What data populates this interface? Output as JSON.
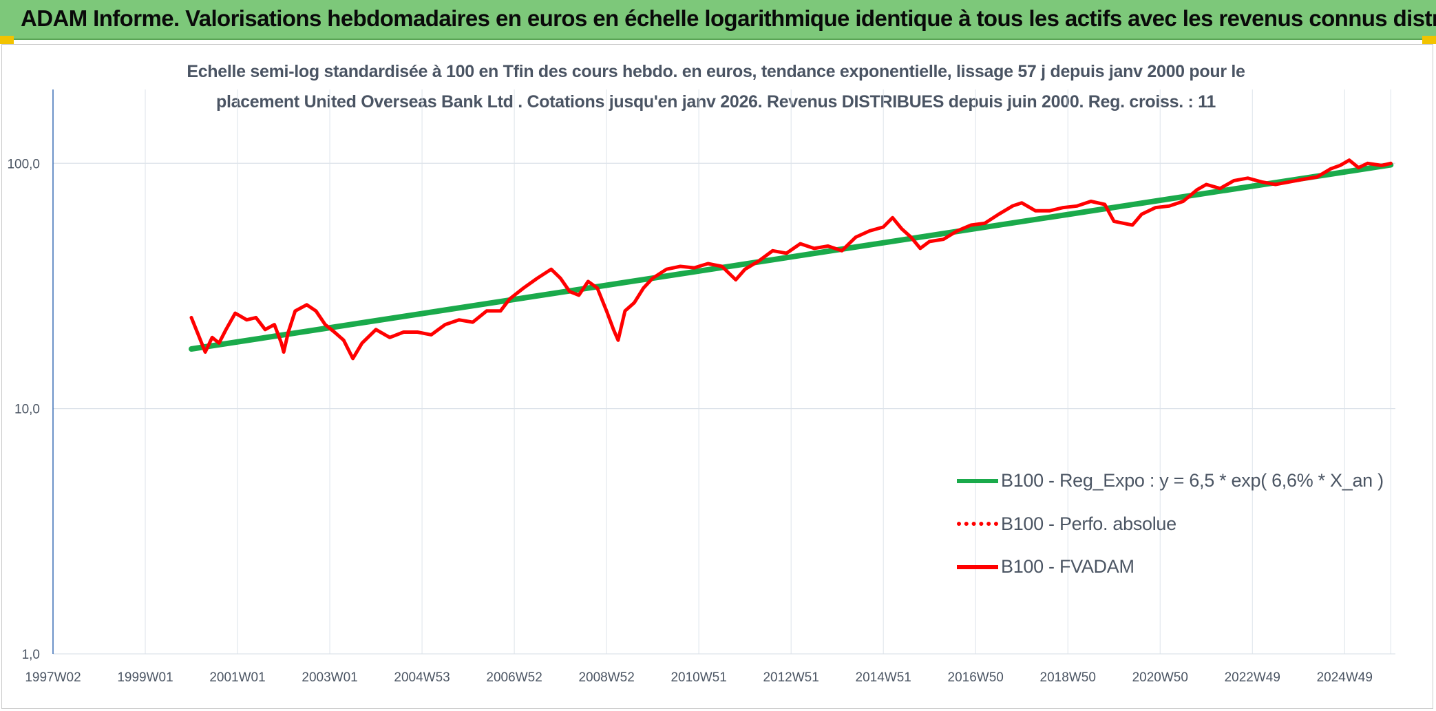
{
  "header": {
    "title": "ADAM Informe. Valorisations hebdomadaires en euros en échelle logarithmique identique à tous les actifs avec les revenus connus distribués"
  },
  "colors": {
    "header_bg": "#7dc87a",
    "regression": "#1aaa4b",
    "fvadam": "#ff0000",
    "perfo": "#ff0000"
  },
  "chart_data": {
    "type": "line",
    "title_line1": "Echelle semi-log standardisée à 100 en Tfin des cours hebdo. en euros, tendance exponentielle, lissage 57 j depuis janv 2000 pour le",
    "title_line2": "placement United Overseas Bank Ltd . Cotations jusqu'en janv 2026. Revenus DISTRIBUES depuis juin 2000. Reg. croiss. : 11",
    "y_scale": "log",
    "ylim": [
      1,
      200
    ],
    "y_ticks": [
      {
        "value": 1,
        "label": "1,0"
      },
      {
        "value": 10,
        "label": "10,0"
      },
      {
        "value": 100,
        "label": "100,0"
      }
    ],
    "xlim": [
      1997.0,
      2026.1
    ],
    "x_ticks": [
      {
        "value": 1997.0,
        "label": "1997W02"
      },
      {
        "value": 1999.0,
        "label": "1999W01"
      },
      {
        "value": 2001.0,
        "label": "2001W01"
      },
      {
        "value": 2003.0,
        "label": "2003W01"
      },
      {
        "value": 2005.0,
        "label": "2004W53"
      },
      {
        "value": 2007.0,
        "label": "2006W52"
      },
      {
        "value": 2009.0,
        "label": "2008W52"
      },
      {
        "value": 2011.0,
        "label": "2010W51"
      },
      {
        "value": 2013.0,
        "label": "2012W51"
      },
      {
        "value": 2015.0,
        "label": "2014W51"
      },
      {
        "value": 2017.0,
        "label": "2016W50"
      },
      {
        "value": 2019.0,
        "label": "2018W50"
      },
      {
        "value": 2021.0,
        "label": "2020W50"
      },
      {
        "value": 2023.0,
        "label": "2022W49"
      },
      {
        "value": 2025.0,
        "label": "2024W49"
      }
    ],
    "grid": true,
    "legend_position": "bottom-right",
    "series": [
      {
        "name": "B100 - Reg_Expo : y = 6,5 * exp( 6,6% *  X_an )",
        "style": "solid-thick",
        "x": [
          2000.0,
          2026.0
        ],
        "y": [
          17.5,
          98.5
        ]
      },
      {
        "name": "B100 - Perfo. absolue",
        "style": "dotted",
        "x": [],
        "y": []
      },
      {
        "name": "B100 - FVADAM",
        "style": "solid",
        "x": [
          2000.0,
          2000.15,
          2000.3,
          2000.45,
          2000.6,
          2000.75,
          2000.95,
          2001.2,
          2001.4,
          2001.6,
          2001.8,
          2001.95,
          2002.0,
          2002.1,
          2002.25,
          2002.5,
          2002.7,
          2002.9,
          2003.1,
          2003.3,
          2003.5,
          2003.7,
          2004.0,
          2004.3,
          2004.6,
          2004.9,
          2005.2,
          2005.5,
          2005.8,
          2006.1,
          2006.4,
          2006.7,
          2006.9,
          2007.2,
          2007.5,
          2007.8,
          2008.0,
          2008.2,
          2008.4,
          2008.6,
          2008.8,
          2009.0,
          2009.15,
          2009.25,
          2009.4,
          2009.6,
          2009.8,
          2010.0,
          2010.3,
          2010.6,
          2010.9,
          2011.2,
          2011.5,
          2011.8,
          2012.0,
          2012.3,
          2012.6,
          2012.9,
          2013.2,
          2013.5,
          2013.8,
          2014.1,
          2014.4,
          2014.7,
          2015.0,
          2015.2,
          2015.4,
          2015.6,
          2015.8,
          2016.0,
          2016.3,
          2016.6,
          2016.9,
          2017.2,
          2017.5,
          2017.8,
          2018.0,
          2018.3,
          2018.6,
          2018.9,
          2019.2,
          2019.5,
          2019.8,
          2020.0,
          2020.2,
          2020.4,
          2020.6,
          2020.9,
          2021.2,
          2021.5,
          2021.8,
          2022.0,
          2022.3,
          2022.6,
          2022.9,
          2023.2,
          2023.5,
          2023.8,
          2024.1,
          2024.4,
          2024.7,
          2024.9,
          2025.1,
          2025.3,
          2025.5,
          2025.8,
          2026.0
        ],
        "y": [
          23.5,
          20.0,
          17.0,
          19.5,
          18.5,
          21.0,
          24.5,
          23.0,
          23.5,
          21.0,
          22.0,
          18.5,
          17.0,
          20.5,
          25.0,
          26.5,
          25.0,
          22.0,
          20.5,
          19.0,
          16.0,
          18.5,
          21.0,
          19.5,
          20.5,
          20.5,
          20.0,
          22.0,
          23.0,
          22.5,
          25.0,
          25.0,
          28.0,
          31.0,
          34.0,
          37.0,
          34.0,
          30.0,
          29.0,
          33.0,
          31.0,
          25.0,
          21.0,
          19.0,
          25.0,
          27.0,
          31.0,
          34.0,
          37.0,
          38.0,
          37.5,
          39.0,
          38.0,
          33.5,
          37.0,
          40.0,
          44.0,
          43.0,
          47.0,
          45.0,
          46.0,
          44.0,
          50.0,
          53.0,
          55.0,
          60.0,
          54.0,
          50.0,
          45.0,
          48.0,
          49.0,
          53.0,
          56.0,
          57.0,
          62.0,
          67.0,
          69.0,
          64.0,
          64.0,
          66.0,
          67.0,
          70.0,
          68.0,
          58.0,
          57.0,
          56.0,
          62.0,
          66.0,
          67.0,
          70.0,
          78.0,
          82.0,
          79.0,
          85.0,
          87.0,
          84.0,
          82.0,
          84.0,
          86.0,
          88.0,
          95.0,
          98.0,
          103.0,
          96.0,
          100.0,
          98.0,
          100.0
        ]
      }
    ]
  }
}
